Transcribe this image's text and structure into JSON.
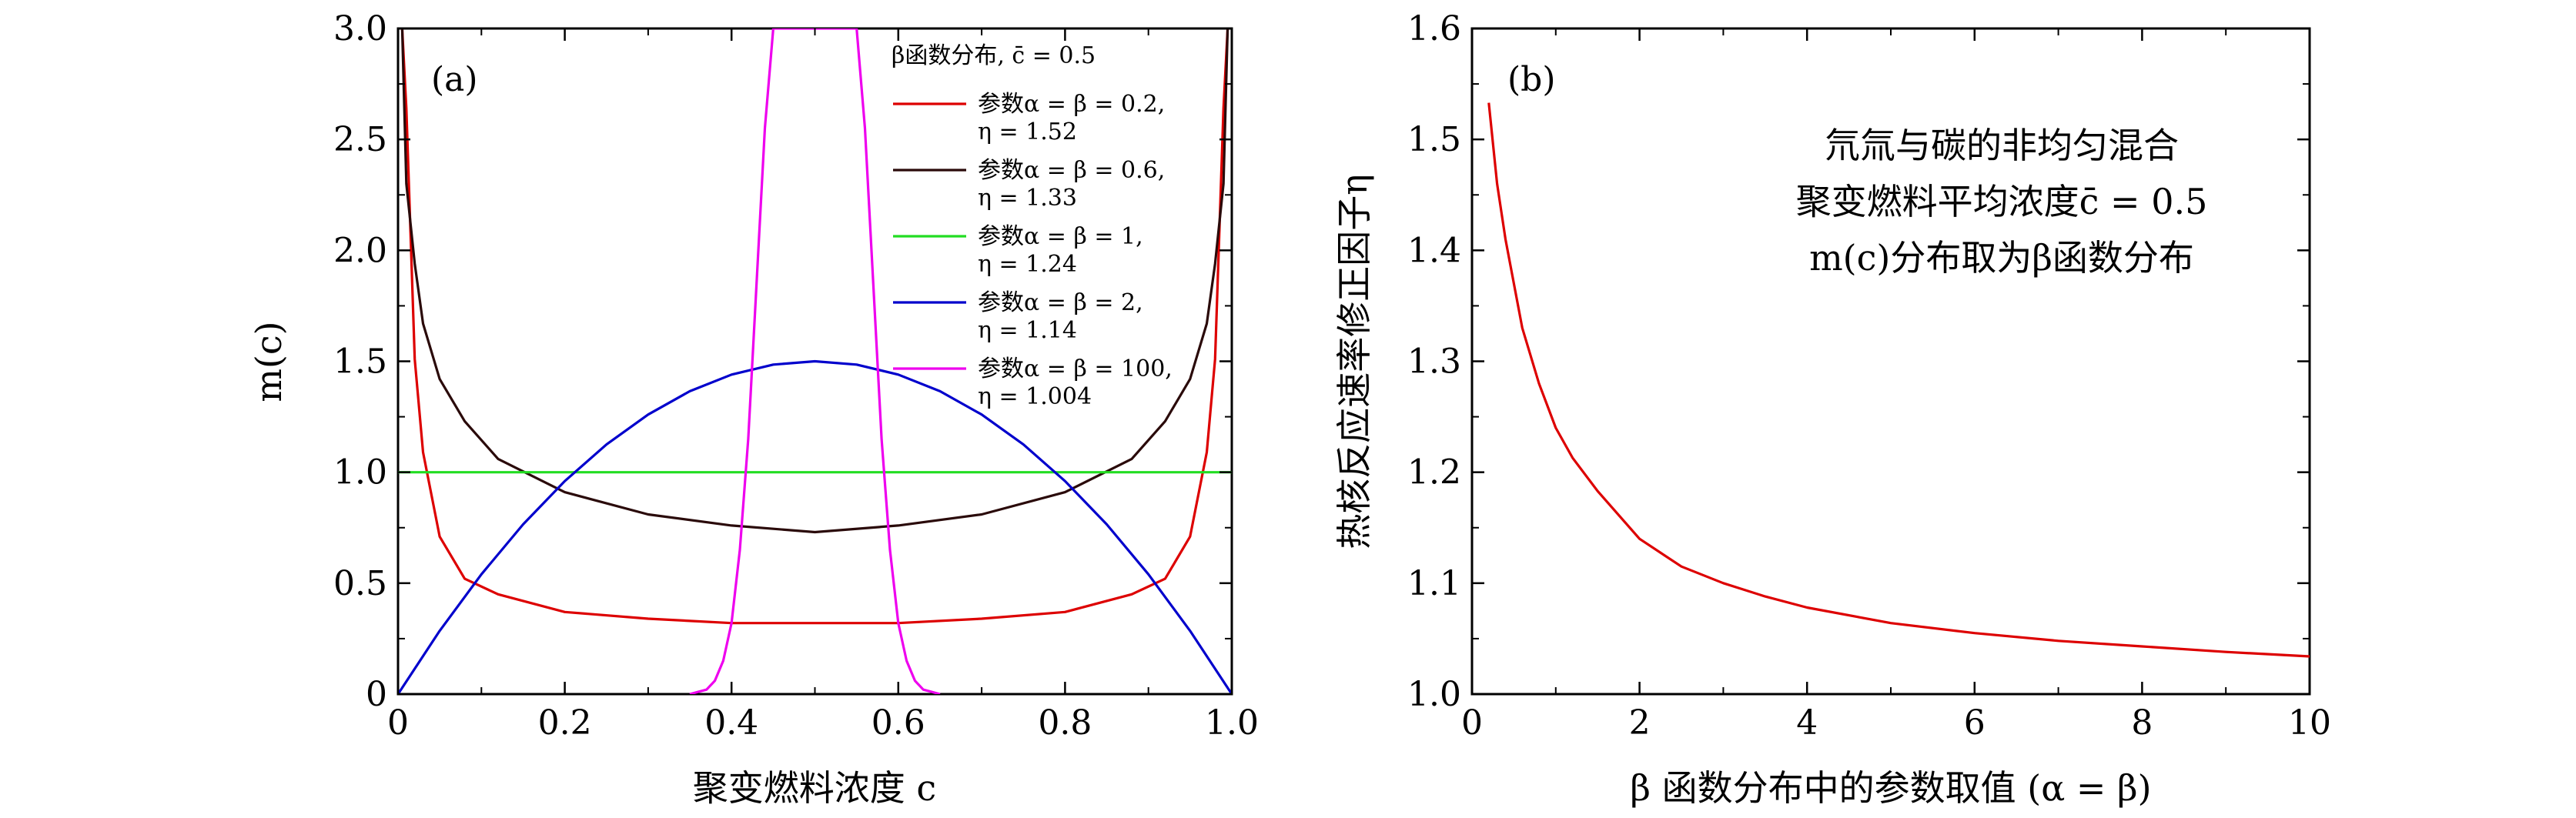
{
  "chart_data": [
    {
      "type": "line",
      "panel_label": "(a)",
      "xlabel": "聚变燃料浓度 c",
      "ylabel": "m(c)",
      "xlim": [
        0,
        1
      ],
      "ylim": [
        0,
        3
      ],
      "xticks": [
        0,
        0.2,
        0.4,
        0.6,
        0.8,
        1.0
      ],
      "xtick_labels": [
        "0",
        "0.2",
        "0.4",
        "0.6",
        "0.8",
        "1.0"
      ],
      "yticks": [
        0,
        0.5,
        1.0,
        1.5,
        2.0,
        2.5,
        3.0
      ],
      "ytick_labels": [
        "0",
        "0.5",
        "1.0",
        "1.5",
        "2.0",
        "2.5",
        "3.0"
      ],
      "legend_title": "β函数分布, c̄ = 0.5",
      "legend_position": "top-right",
      "grid": false,
      "series": [
        {
          "name_line1": "参数α = β = 0.2,",
          "name_line2": "η = 1.52",
          "alpha": 0.2,
          "color": "#dd0000",
          "x": [
            0.005,
            0.01,
            0.02,
            0.03,
            0.05,
            0.08,
            0.12,
            0.2,
            0.3,
            0.4,
            0.5,
            0.6,
            0.7,
            0.8,
            0.88,
            0.92,
            0.95,
            0.97,
            0.98,
            0.99,
            0.995
          ],
          "y": [
            3.0,
            2.64,
            1.51,
            1.09,
            0.71,
            0.52,
            0.45,
            0.37,
            0.34,
            0.32,
            0.32,
            0.32,
            0.34,
            0.37,
            0.45,
            0.52,
            0.71,
            1.09,
            1.51,
            2.64,
            3.0
          ]
        },
        {
          "name_line1": "参数α = β = 0.6,",
          "name_line2": "η = 1.33",
          "alpha": 0.6,
          "color": "#2a0a0a",
          "x": [
            0.005,
            0.01,
            0.02,
            0.03,
            0.05,
            0.08,
            0.12,
            0.2,
            0.3,
            0.4,
            0.5,
            0.6,
            0.7,
            0.8,
            0.88,
            0.92,
            0.95,
            0.97,
            0.98,
            0.99,
            0.995
          ],
          "y": [
            3.0,
            2.3,
            1.94,
            1.67,
            1.42,
            1.23,
            1.06,
            0.91,
            0.81,
            0.76,
            0.73,
            0.76,
            0.81,
            0.91,
            1.06,
            1.23,
            1.42,
            1.67,
            1.94,
            2.3,
            3.0
          ]
        },
        {
          "name_line1": "参数α = β = 1,",
          "name_line2": "η = 1.24",
          "alpha": 1,
          "color": "#22dd22",
          "x": [
            0,
            1
          ],
          "y": [
            1.0,
            1.0
          ]
        },
        {
          "name_line1": "参数α = β = 2,",
          "name_line2": "η = 1.14",
          "alpha": 2,
          "color": "#0000cc",
          "x": [
            0,
            0.05,
            0.1,
            0.15,
            0.2,
            0.25,
            0.3,
            0.35,
            0.4,
            0.45,
            0.5,
            0.55,
            0.6,
            0.65,
            0.7,
            0.75,
            0.8,
            0.85,
            0.9,
            0.95,
            1.0
          ],
          "y": [
            0,
            0.285,
            0.54,
            0.765,
            0.96,
            1.125,
            1.26,
            1.365,
            1.44,
            1.485,
            1.5,
            1.485,
            1.44,
            1.365,
            1.26,
            1.125,
            0.96,
            0.765,
            0.54,
            0.285,
            0
          ]
        },
        {
          "name_line1": "参数α = β = 100,",
          "name_line2": "η = 1.004",
          "alpha": 100,
          "color": "#ee00ee",
          "x": [
            0.35,
            0.36,
            0.37,
            0.38,
            0.39,
            0.4,
            0.41,
            0.42,
            0.43,
            0.44,
            0.45,
            0.46,
            0.54,
            0.55,
            0.56,
            0.57,
            0.58,
            0.59,
            0.6,
            0.61,
            0.62,
            0.63,
            0.64,
            0.65
          ],
          "y": [
            0.0,
            0.01,
            0.02,
            0.06,
            0.15,
            0.32,
            0.65,
            1.15,
            1.85,
            2.55,
            3.0,
            3.0,
            3.0,
            3.0,
            2.55,
            1.85,
            1.15,
            0.65,
            0.32,
            0.15,
            0.06,
            0.02,
            0.01,
            0.0
          ]
        }
      ]
    },
    {
      "type": "line",
      "panel_label": "(b)",
      "xlabel": "β 函数分布中的参数取值 (α = β)",
      "ylabel": "热核反应速率修正因子η",
      "xlim": [
        0,
        10
      ],
      "ylim": [
        1.0,
        1.6
      ],
      "xticks": [
        0,
        2,
        4,
        6,
        8,
        10
      ],
      "xtick_labels": [
        "0",
        "2",
        "4",
        "6",
        "8",
        "10"
      ],
      "yticks": [
        1.0,
        1.1,
        1.2,
        1.3,
        1.4,
        1.5,
        1.6
      ],
      "ytick_labels": [
        "1.0",
        "1.1",
        "1.2",
        "1.3",
        "1.4",
        "1.5",
        "1.6"
      ],
      "annotation": [
        "氘氚与碳的非均匀混合",
        "聚变燃料平均浓度c̄ = 0.5",
        "m(c)分布取为β函数分布"
      ],
      "grid": false,
      "series": [
        {
          "color": "#dd0000",
          "x": [
            0.2,
            0.3,
            0.4,
            0.6,
            0.8,
            1.0,
            1.2,
            1.5,
            2.0,
            2.5,
            3.0,
            3.5,
            4.0,
            5.0,
            6.0,
            7.0,
            8.0,
            9.0,
            10.0
          ],
          "y": [
            1.533,
            1.46,
            1.41,
            1.33,
            1.28,
            1.24,
            1.213,
            1.183,
            1.14,
            1.115,
            1.1,
            1.088,
            1.078,
            1.064,
            1.055,
            1.048,
            1.043,
            1.038,
            1.034
          ]
        }
      ]
    }
  ]
}
